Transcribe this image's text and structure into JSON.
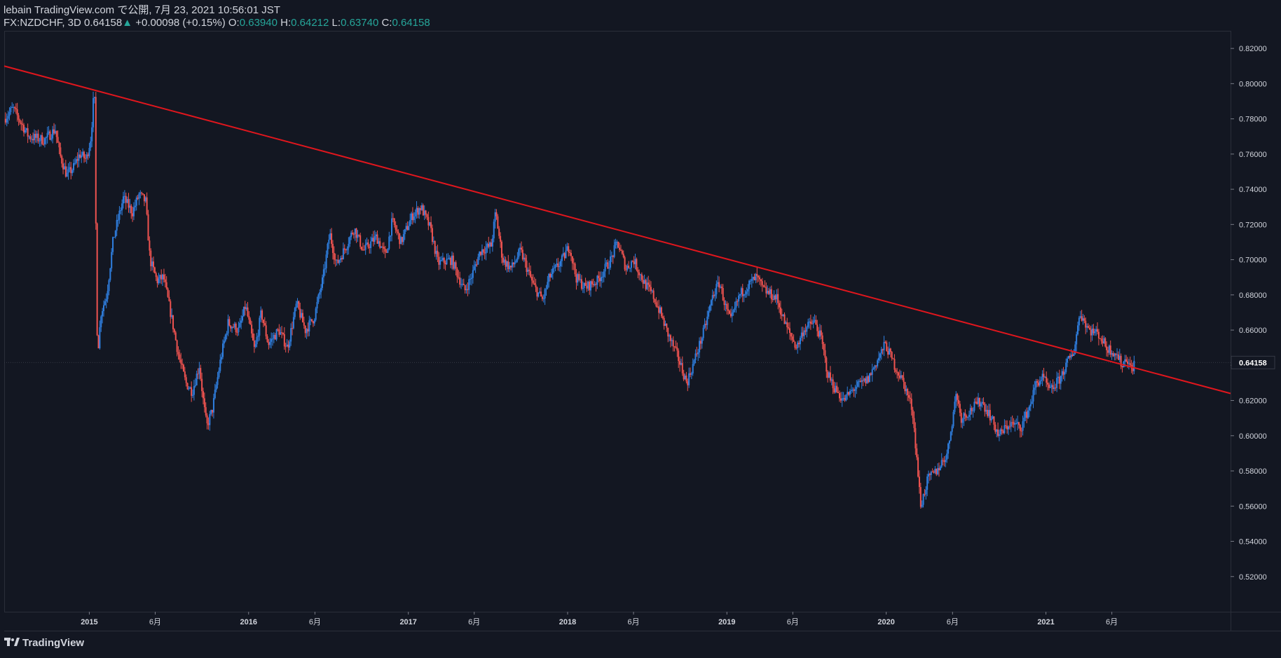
{
  "header": {
    "line1": "lebain TradingView.com で公開, 7月 23, 2021 10:56:01 JST",
    "symbol": "FX:NZDCHF, 3D",
    "price": "0.64158",
    "change_arrow": "▲",
    "change": "+0.00098 (+0.15%)",
    "o_label": "O:",
    "o_value": "0.63940",
    "h_label": "H:",
    "h_value": "0.64212",
    "l_label": "L:",
    "l_value": "0.63740",
    "c_label": "C:",
    "c_value": "0.64158"
  },
  "footer": {
    "brand": "TradingView",
    "logo_icon": "tradingview-logo-icon"
  },
  "colors": {
    "background": "#131722",
    "up": "#2f7fe0",
    "down": "#ef5350",
    "trendline": "#e0161d",
    "axis_text": "#d1d4dc",
    "grid": "#2a2e39",
    "price_label_bg": "#131722",
    "price_label_text": "#ffffff"
  },
  "chart_data": {
    "type": "candlestick",
    "title": "",
    "xlabel": "",
    "ylabel": "",
    "ylim": [
      0.5,
      0.83
    ],
    "xlim": [
      "2014-06-20",
      "2022-02-28"
    ],
    "y_ticks": [
      "0.52000",
      "0.54000",
      "0.56000",
      "0.58000",
      "0.60000",
      "0.62000",
      "0.64000",
      "0.66000",
      "0.68000",
      "0.70000",
      "0.72000",
      "0.74000",
      "0.76000",
      "0.78000",
      "0.80000",
      "0.82000"
    ],
    "x_ticks": [
      {
        "label": "2015",
        "date": "2015-01-01",
        "bold": true
      },
      {
        "label": "6月",
        "date": "2015-06-01",
        "bold": false
      },
      {
        "label": "2016",
        "date": "2016-01-01",
        "bold": true
      },
      {
        "label": "6月",
        "date": "2016-06-01",
        "bold": false
      },
      {
        "label": "2017",
        "date": "2017-01-01",
        "bold": true
      },
      {
        "label": "6月",
        "date": "2017-06-01",
        "bold": false
      },
      {
        "label": "2018",
        "date": "2018-01-01",
        "bold": true
      },
      {
        "label": "6月",
        "date": "2018-06-01",
        "bold": false
      },
      {
        "label": "2019",
        "date": "2019-01-01",
        "bold": true
      },
      {
        "label": "6月",
        "date": "2019-06-01",
        "bold": false
      },
      {
        "label": "2020",
        "date": "2020-01-01",
        "bold": true
      },
      {
        "label": "6月",
        "date": "2020-06-01",
        "bold": false
      },
      {
        "label": "2021",
        "date": "2021-01-01",
        "bold": true
      },
      {
        "label": "6月",
        "date": "2021-06-01",
        "bold": false
      }
    ],
    "last_price_label": "0.64158",
    "last_price": 0.64158,
    "price_path": [
      [
        "2014-06-20",
        0.78
      ],
      [
        "2014-07-10",
        0.786
      ],
      [
        "2014-08-15",
        0.77
      ],
      [
        "2014-09-20",
        0.768
      ],
      [
        "2014-10-15",
        0.774
      ],
      [
        "2014-10-25",
        0.76
      ],
      [
        "2014-11-10",
        0.748
      ],
      [
        "2014-11-25",
        0.752
      ],
      [
        "2014-12-10",
        0.76
      ],
      [
        "2014-12-25",
        0.757
      ],
      [
        "2015-01-05",
        0.77
      ],
      [
        "2015-01-12",
        0.797
      ],
      [
        "2015-01-15",
        0.775
      ],
      [
        "2015-01-17",
        0.665
      ],
      [
        "2015-01-22",
        0.652
      ],
      [
        "2015-01-28",
        0.67
      ],
      [
        "2015-02-10",
        0.68
      ],
      [
        "2015-02-25",
        0.712
      ],
      [
        "2015-03-20",
        0.735
      ],
      [
        "2015-04-10",
        0.727
      ],
      [
        "2015-04-25",
        0.737
      ],
      [
        "2015-05-10",
        0.733
      ],
      [
        "2015-05-20",
        0.7
      ],
      [
        "2015-06-05",
        0.688
      ],
      [
        "2015-06-20",
        0.69
      ],
      [
        "2015-07-10",
        0.665
      ],
      [
        "2015-07-25",
        0.645
      ],
      [
        "2015-08-10",
        0.63
      ],
      [
        "2015-08-25",
        0.625
      ],
      [
        "2015-09-10",
        0.64
      ],
      [
        "2015-09-20",
        0.618
      ],
      [
        "2015-09-27",
        0.605
      ],
      [
        "2015-10-10",
        0.615
      ],
      [
        "2015-10-30",
        0.645
      ],
      [
        "2015-11-15",
        0.664
      ],
      [
        "2015-12-10",
        0.66
      ],
      [
        "2015-12-25",
        0.674
      ],
      [
        "2016-01-15",
        0.648
      ],
      [
        "2016-01-30",
        0.67
      ],
      [
        "2016-02-15",
        0.652
      ],
      [
        "2016-03-10",
        0.66
      ],
      [
        "2016-03-30",
        0.65
      ],
      [
        "2016-04-20",
        0.675
      ],
      [
        "2016-05-10",
        0.66
      ],
      [
        "2016-05-30",
        0.667
      ],
      [
        "2016-06-20",
        0.69
      ],
      [
        "2016-07-05",
        0.715
      ],
      [
        "2016-07-20",
        0.697
      ],
      [
        "2016-08-10",
        0.707
      ],
      [
        "2016-08-30",
        0.718
      ],
      [
        "2016-09-20",
        0.705
      ],
      [
        "2016-10-20",
        0.713
      ],
      [
        "2016-11-10",
        0.702
      ],
      [
        "2016-11-25",
        0.722
      ],
      [
        "2016-12-15",
        0.71
      ],
      [
        "2017-01-10",
        0.725
      ],
      [
        "2017-01-30",
        0.73
      ],
      [
        "2017-02-20",
        0.718
      ],
      [
        "2017-03-10",
        0.698
      ],
      [
        "2017-04-10",
        0.7
      ],
      [
        "2017-05-10",
        0.682
      ],
      [
        "2017-05-25",
        0.69
      ],
      [
        "2017-06-15",
        0.705
      ],
      [
        "2017-07-10",
        0.708
      ],
      [
        "2017-07-20",
        0.727
      ],
      [
        "2017-08-05",
        0.7
      ],
      [
        "2017-08-25",
        0.695
      ],
      [
        "2017-09-15",
        0.705
      ],
      [
        "2017-10-15",
        0.685
      ],
      [
        "2017-11-05",
        0.677
      ],
      [
        "2017-11-20",
        0.69
      ],
      [
        "2017-12-20",
        0.7
      ],
      [
        "2018-01-05",
        0.708
      ],
      [
        "2018-01-20",
        0.69
      ],
      [
        "2018-02-10",
        0.684
      ],
      [
        "2018-03-10",
        0.688
      ],
      [
        "2018-04-10",
        0.7
      ],
      [
        "2018-04-25",
        0.71
      ],
      [
        "2018-05-15",
        0.695
      ],
      [
        "2018-06-01",
        0.7
      ],
      [
        "2018-06-25",
        0.687
      ],
      [
        "2018-07-15",
        0.68
      ],
      [
        "2018-08-01",
        0.67
      ],
      [
        "2018-08-20",
        0.657
      ],
      [
        "2018-09-10",
        0.645
      ],
      [
        "2018-10-01",
        0.63
      ],
      [
        "2018-10-15",
        0.64
      ],
      [
        "2018-11-10",
        0.66
      ],
      [
        "2018-11-30",
        0.68
      ],
      [
        "2018-12-15",
        0.687
      ],
      [
        "2018-12-30",
        0.672
      ],
      [
        "2019-01-10",
        0.665
      ],
      [
        "2019-01-30",
        0.68
      ],
      [
        "2019-02-25",
        0.687
      ],
      [
        "2019-03-10",
        0.69
      ],
      [
        "2019-03-25",
        0.683
      ],
      [
        "2019-04-25",
        0.678
      ],
      [
        "2019-05-15",
        0.663
      ],
      [
        "2019-06-10",
        0.65
      ],
      [
        "2019-06-25",
        0.66
      ],
      [
        "2019-07-20",
        0.665
      ],
      [
        "2019-08-05",
        0.655
      ],
      [
        "2019-08-20",
        0.635
      ],
      [
        "2019-09-05",
        0.627
      ],
      [
        "2019-09-25",
        0.62
      ],
      [
        "2019-10-20",
        0.627
      ],
      [
        "2019-11-20",
        0.632
      ],
      [
        "2019-12-10",
        0.642
      ],
      [
        "2019-12-30",
        0.652
      ],
      [
        "2020-01-20",
        0.64
      ],
      [
        "2020-02-10",
        0.63
      ],
      [
        "2020-03-01",
        0.615
      ],
      [
        "2020-03-10",
        0.59
      ],
      [
        "2020-03-20",
        0.56
      ],
      [
        "2020-04-05",
        0.575
      ],
      [
        "2020-04-25",
        0.58
      ],
      [
        "2020-05-20",
        0.59
      ],
      [
        "2020-06-10",
        0.625
      ],
      [
        "2020-06-20",
        0.61
      ],
      [
        "2020-07-15",
        0.615
      ],
      [
        "2020-08-05",
        0.62
      ],
      [
        "2020-08-25",
        0.612
      ],
      [
        "2020-09-15",
        0.6
      ],
      [
        "2020-10-10",
        0.607
      ],
      [
        "2020-11-05",
        0.605
      ],
      [
        "2020-11-25",
        0.617
      ],
      [
        "2020-12-10",
        0.63
      ],
      [
        "2020-12-25",
        0.633
      ],
      [
        "2021-01-10",
        0.625
      ],
      [
        "2021-02-01",
        0.632
      ],
      [
        "2021-02-20",
        0.642
      ],
      [
        "2021-03-05",
        0.647
      ],
      [
        "2021-03-20",
        0.67
      ],
      [
        "2021-04-10",
        0.66
      ],
      [
        "2021-05-01",
        0.658
      ],
      [
        "2021-05-20",
        0.65
      ],
      [
        "2021-06-10",
        0.647
      ],
      [
        "2021-06-25",
        0.64
      ],
      [
        "2021-07-05",
        0.645
      ],
      [
        "2021-07-15",
        0.637
      ],
      [
        "2021-07-23",
        0.64158
      ]
    ],
    "trendline": {
      "color": "red",
      "points": [
        [
          "2014-06-20",
          0.81
        ],
        [
          "2022-02-28",
          0.624
        ]
      ]
    }
  }
}
